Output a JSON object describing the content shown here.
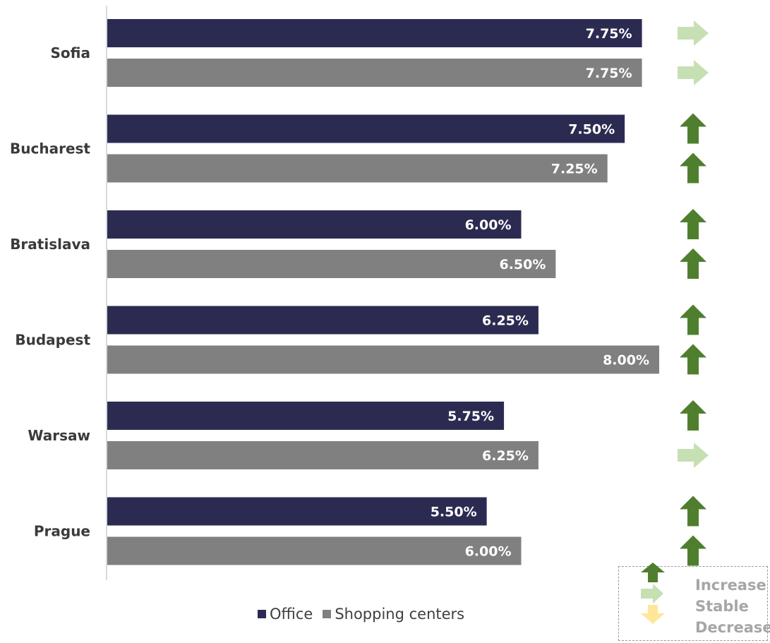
{
  "chart_data": {
    "type": "bar",
    "orientation": "horizontal",
    "categories": [
      "Sofia",
      "Bucharest",
      "Bratislava",
      "Budapest",
      "Warsaw",
      "Prague"
    ],
    "series": [
      {
        "name": "Office",
        "color": "#2b2b52",
        "values": [
          7.75,
          7.5,
          6.0,
          6.25,
          5.75,
          5.5
        ],
        "labels": [
          "7.75%",
          "7.50%",
          "6.00%",
          "6.25%",
          "5.75%",
          "5.50%"
        ],
        "trend": [
          "stable",
          "increase",
          "increase",
          "increase",
          "increase",
          "increase"
        ]
      },
      {
        "name": "Shopping centers",
        "color": "#808080",
        "values": [
          7.75,
          7.25,
          6.5,
          8.0,
          6.25,
          6.0
        ],
        "labels": [
          "7.75%",
          "7.25%",
          "6.50%",
          "8.00%",
          "6.25%",
          "6.00%"
        ],
        "trend": [
          "stable",
          "increase",
          "increase",
          "increase",
          "stable",
          "increase"
        ]
      }
    ],
    "xlim": [
      0,
      8
    ],
    "grid": false,
    "legend_position": "bottom"
  },
  "trend_key": {
    "increase": {
      "label": "Increase",
      "color": "#4f7f2e",
      "icon": "up-arrow-icon"
    },
    "stable": {
      "label": "Stable",
      "color": "#c6e0b4",
      "icon": "right-arrow-icon"
    },
    "decrease": {
      "label": "Decrease",
      "color": "#ffe699",
      "icon": "down-arrow-icon"
    }
  }
}
